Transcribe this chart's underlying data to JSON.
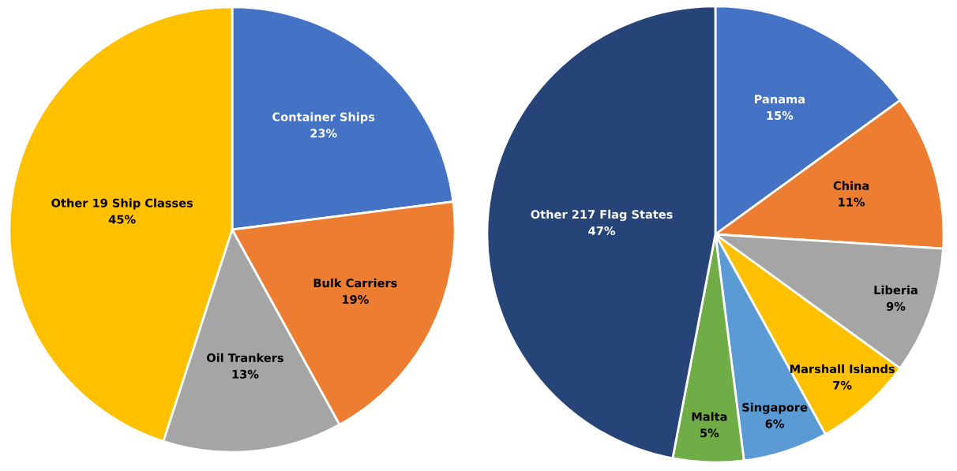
{
  "chart_data": [
    {
      "type": "pie",
      "categories": [
        "Container Ships",
        "Bulk Carriers",
        "Oil Trankers",
        "Other 19 Ship Classes"
      ],
      "values": [
        23,
        19,
        13,
        45
      ],
      "colors": [
        "#4472c4",
        "#ed7d31",
        "#a5a5a5",
        "#ffc000"
      ],
      "value_labels": [
        "23%",
        "19%",
        "13%",
        "45%"
      ]
    },
    {
      "type": "pie",
      "categories": [
        "Panama",
        "China",
        "Liberia",
        "Marshall Islands",
        "Singapore",
        "Malta",
        "Other 217 Flag States"
      ],
      "values": [
        15,
        11,
        9,
        7,
        6,
        5,
        47
      ],
      "colors": [
        "#4472c4",
        "#ed7d31",
        "#a5a5a5",
        "#ffc000",
        "#5b9bd5",
        "#70ad47",
        "#264478"
      ],
      "value_labels": [
        "15%",
        "11%",
        "9%",
        "7%",
        "6%",
        "5%",
        "47%"
      ]
    }
  ]
}
